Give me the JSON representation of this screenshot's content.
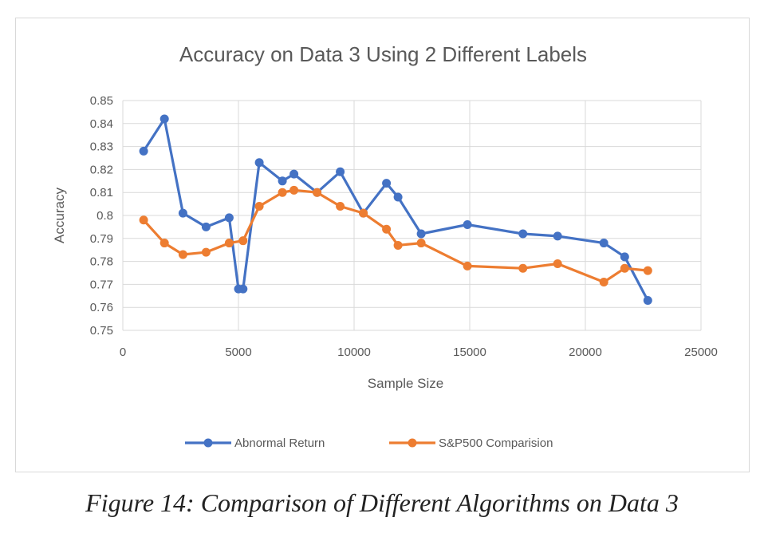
{
  "chart_data": {
    "type": "line",
    "title": "Accuracy on Data 3 Using 2 Different Labels",
    "xlabel": "Sample Size",
    "ylabel": "Accuracy",
    "xlim": [
      0,
      25000
    ],
    "ylim": [
      0.75,
      0.85
    ],
    "x_ticks": [
      "0",
      "5000",
      "10000",
      "15000",
      "20000",
      "25000"
    ],
    "y_ticks": [
      "0.75",
      "0.76",
      "0.77",
      "0.78",
      "0.79",
      "0.8",
      "0.81",
      "0.82",
      "0.83",
      "0.84",
      "0.85"
    ],
    "grid": true,
    "legend_position": "bottom",
    "series": [
      {
        "name": "Abnormal Return",
        "color": "#4472c4",
        "points": [
          [
            900,
            0.828
          ],
          [
            1800,
            0.842
          ],
          [
            2600,
            0.801
          ],
          [
            3600,
            0.795
          ],
          [
            4600,
            0.799
          ],
          [
            5000,
            0.768
          ],
          [
            5200,
            0.768
          ],
          [
            5900,
            0.823
          ],
          [
            6900,
            0.815
          ],
          [
            7400,
            0.818
          ],
          [
            8400,
            0.81
          ],
          [
            9400,
            0.819
          ],
          [
            10400,
            0.801
          ],
          [
            11400,
            0.814
          ],
          [
            11900,
            0.808
          ],
          [
            12900,
            0.792
          ],
          [
            14900,
            0.796
          ],
          [
            17300,
            0.792
          ],
          [
            18800,
            0.791
          ],
          [
            20800,
            0.788
          ],
          [
            21700,
            0.782
          ],
          [
            22700,
            0.763
          ]
        ]
      },
      {
        "name": "S&P500 Comparision",
        "color": "#ed7d31",
        "points": [
          [
            900,
            0.798
          ],
          [
            1800,
            0.788
          ],
          [
            2600,
            0.783
          ],
          [
            3600,
            0.784
          ],
          [
            4600,
            0.788
          ],
          [
            5200,
            0.789
          ],
          [
            5900,
            0.804
          ],
          [
            6900,
            0.81
          ],
          [
            7400,
            0.811
          ],
          [
            8400,
            0.81
          ],
          [
            9400,
            0.804
          ],
          [
            10400,
            0.801
          ],
          [
            11400,
            0.794
          ],
          [
            11900,
            0.787
          ],
          [
            12900,
            0.788
          ],
          [
            14900,
            0.778
          ],
          [
            17300,
            0.777
          ],
          [
            18800,
            0.779
          ],
          [
            20800,
            0.771
          ],
          [
            21700,
            0.777
          ],
          [
            22700,
            0.776
          ]
        ]
      }
    ]
  },
  "caption": "Figure 14: Comparison of Different Algorithms on Data 3"
}
